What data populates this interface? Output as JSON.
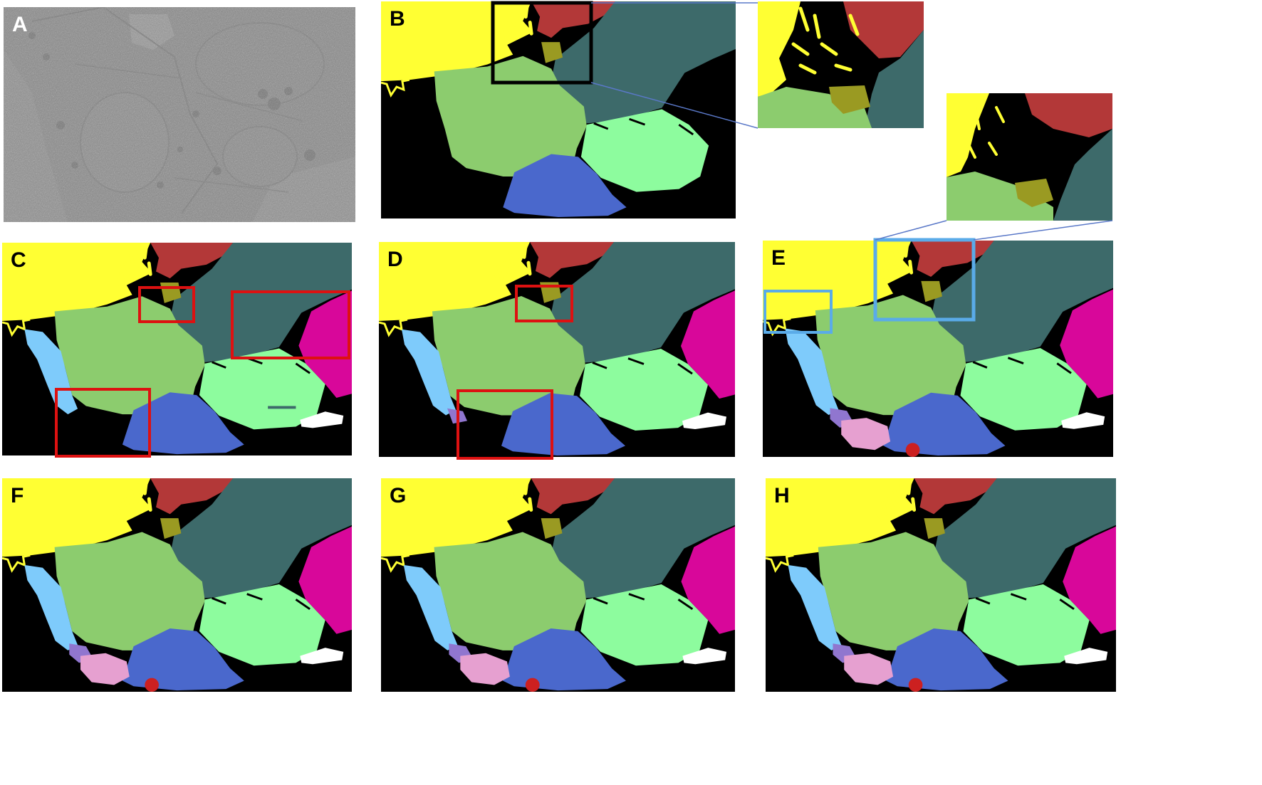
{
  "figure": {
    "panels": [
      {
        "label": "A",
        "content": "electron-micrograph"
      },
      {
        "label": "B",
        "content": "segmentation-early"
      },
      {
        "label": "C",
        "content": "segmentation-with-errors"
      },
      {
        "label": "D",
        "content": "segmentation-corrected"
      },
      {
        "label": "E",
        "content": "segmentation-refined"
      },
      {
        "label": "F",
        "content": "segmentation-final"
      },
      {
        "label": "G",
        "content": "segmentation-final"
      },
      {
        "label": "H",
        "content": "segmentation-final"
      }
    ],
    "label_colors": {
      "A": "#ffffff",
      "default": "#000000"
    },
    "colors": {
      "yellow": "#ffff33",
      "red": "#b33838",
      "teal": "#3d6a6a",
      "olive": "#9a9a22",
      "light_green": "#8ccc6e",
      "mint": "#8dfc9e",
      "blue": "#4a68cc",
      "sky_blue": "#7ecbfb",
      "magenta": "#d8079a",
      "purple": "#9076cf",
      "pink": "#e6a0d0",
      "white": "#ffffff",
      "box_black": "#000000",
      "box_red": "#dd1111",
      "box_blue": "#5aabe8",
      "connector": "#5a78c8"
    }
  }
}
